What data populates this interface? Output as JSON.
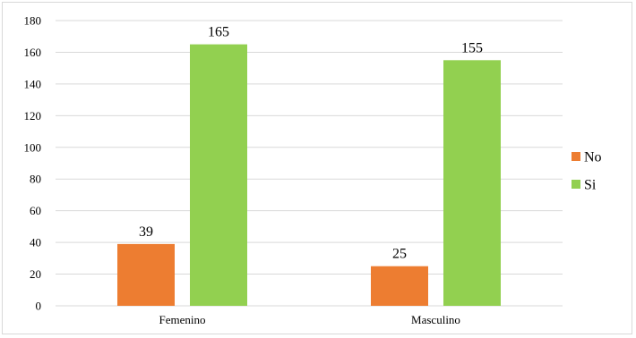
{
  "chart_data": {
    "type": "bar",
    "categories": [
      "Femenino",
      "Masculino"
    ],
    "series": [
      {
        "name": "No",
        "values": [
          39,
          25
        ],
        "color": "#ED7D31"
      },
      {
        "name": "Si",
        "values": [
          165,
          155
        ],
        "color": "#92D050"
      }
    ],
    "ylim": [
      0,
      180
    ],
    "yticks": [
      0,
      20,
      40,
      60,
      80,
      100,
      120,
      140,
      160,
      180
    ],
    "grid": true,
    "legend": "right",
    "data_labels": true
  }
}
